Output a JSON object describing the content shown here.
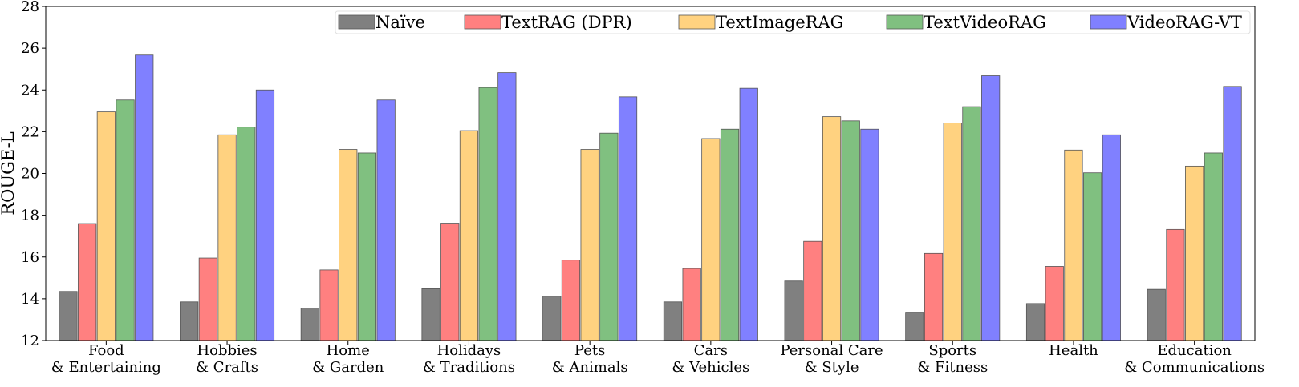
{
  "chart_data": {
    "type": "bar",
    "title": "",
    "xlabel": "",
    "ylabel": "ROUGE-L",
    "ylim": [
      12,
      28
    ],
    "yticks": [
      "12",
      "14",
      "16",
      "18",
      "20",
      "22",
      "24",
      "26",
      "28"
    ],
    "legend_position": "top-right",
    "categories": [
      [
        "Food",
        "& Entertaining"
      ],
      [
        "Hobbies",
        "& Crafts"
      ],
      [
        "Home",
        "& Garden"
      ],
      [
        "Holidays",
        "& Traditions"
      ],
      [
        "Pets",
        "& Animals"
      ],
      [
        "Cars",
        "& Vehicles"
      ],
      [
        "Personal Care",
        "& Style"
      ],
      [
        "Sports",
        "& Fitness"
      ],
      [
        "Health",
        ""
      ],
      [
        "Education",
        "& Communications"
      ]
    ],
    "series": [
      {
        "name": "Naïve",
        "color": "#808080",
        "values": [
          14.35,
          13.85,
          13.55,
          14.48,
          14.12,
          13.85,
          14.85,
          13.32,
          13.77,
          14.45
        ]
      },
      {
        "name": "TextRAG (DPR)",
        "color": "#ff8080",
        "values": [
          17.6,
          15.95,
          15.38,
          17.62,
          15.85,
          15.45,
          16.75,
          16.17,
          15.55,
          17.32
        ]
      },
      {
        "name": "TextImageRAG",
        "color": "#ffd280",
        "values": [
          22.95,
          21.85,
          21.15,
          22.05,
          21.15,
          21.67,
          22.72,
          22.42,
          21.12,
          20.35
        ]
      },
      {
        "name": "TextVideoRAG",
        "color": "#80c080",
        "values": [
          23.52,
          22.22,
          20.98,
          24.12,
          21.93,
          22.12,
          22.52,
          23.2,
          20.03,
          20.98
        ]
      },
      {
        "name": "VideoRAG-VT",
        "color": "#8080ff",
        "values": [
          25.67,
          24.0,
          23.52,
          24.83,
          23.67,
          24.08,
          22.12,
          24.68,
          21.85,
          24.17
        ]
      }
    ]
  }
}
